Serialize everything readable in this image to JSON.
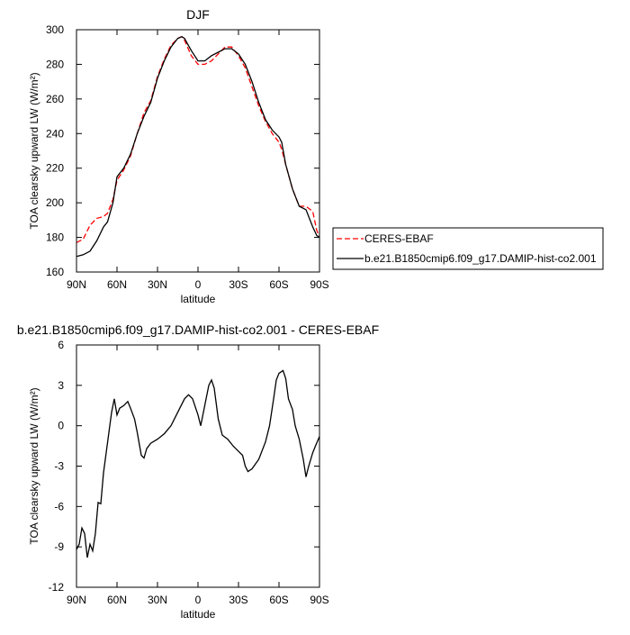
{
  "chart_data": [
    {
      "type": "line",
      "title": "DJF",
      "xlabel": "latitude",
      "ylabel": "TOA clearsky upward LW (W/m²)",
      "x": [
        90,
        85,
        80,
        75,
        70,
        67,
        63,
        60,
        55,
        50,
        45,
        40,
        35,
        30,
        25,
        20,
        15,
        12,
        10,
        5,
        0,
        -5,
        -10,
        -15,
        -20,
        -25,
        -30,
        -35,
        -40,
        -45,
        -50,
        -55,
        -60,
        -62,
        -65,
        -70,
        -75,
        -80,
        -85,
        -88,
        -90
      ],
      "series": [
        {
          "name": "CERES-EBAF",
          "color": "#ff0000",
          "dashed": true,
          "values": [
            177,
            179,
            187,
            191,
            192,
            194,
            202,
            213,
            219,
            227,
            240,
            252,
            259,
            273,
            283,
            291,
            295,
            296,
            294,
            285,
            280,
            280,
            282,
            286,
            290,
            290,
            285,
            278,
            267,
            256,
            247,
            240,
            235,
            231,
            222,
            208,
            198,
            198,
            195,
            184,
            180
          ]
        },
        {
          "name": "b.e21.B1850cmip6.f09_g17.DAMIP-hist-co2.001",
          "color": "#000000",
          "dashed": false,
          "values": [
            169,
            170,
            172,
            178,
            186,
            189,
            200,
            215,
            220,
            228,
            240,
            250,
            258,
            272,
            282,
            290,
            295,
            296,
            295,
            288,
            282,
            282,
            285,
            287,
            289,
            289,
            286,
            280,
            270,
            258,
            248,
            242,
            238,
            235,
            222,
            208,
            198,
            196,
            186,
            181,
            180
          ]
        }
      ],
      "xlim": [
        90,
        -90
      ],
      "xticks": [
        {
          "value": 90,
          "label": "90N"
        },
        {
          "value": 60,
          "label": "60N"
        },
        {
          "value": 30,
          "label": "30N"
        },
        0,
        {
          "value": -30,
          "label": "30S"
        },
        {
          "value": -60,
          "label": "60S"
        },
        {
          "value": -90,
          "label": "90S"
        }
      ],
      "ylim": [
        160,
        300
      ],
      "yticks": [
        160,
        180,
        200,
        220,
        240,
        260,
        280,
        300
      ],
      "legend": "right"
    },
    {
      "type": "line",
      "title": "b.e21.B1850cmip6.f09_g17.DAMIP-hist-co2.001 - CERES-EBAF",
      "xlabel": "latitude",
      "ylabel": "TOA clearsky upward LW (W/m²)",
      "x": [
        90,
        88,
        86,
        84,
        82,
        80,
        78,
        76,
        74,
        72,
        70,
        68,
        66,
        64,
        62,
        60,
        58,
        55,
        52,
        50,
        47,
        45,
        42,
        40,
        38,
        35,
        30,
        25,
        20,
        15,
        10,
        7,
        4,
        0,
        -2,
        -5,
        -8,
        -10,
        -12,
        -15,
        -18,
        -22,
        -26,
        -30,
        -33,
        -35,
        -37,
        -40,
        -45,
        -50,
        -53,
        -56,
        -58,
        -60,
        -63,
        -65,
        -67,
        -70,
        -72,
        -75,
        -78,
        -80,
        -82,
        -85,
        -87,
        -90
      ],
      "series": [
        {
          "name": null,
          "color": "#000000",
          "dashed": false,
          "values": [
            -9.2,
            -8.8,
            -7.6,
            -8.0,
            -9.8,
            -8.8,
            -9.3,
            -8.0,
            -5.7,
            -5.8,
            -3.5,
            -2.0,
            -0.5,
            1.0,
            2.0,
            0.8,
            1.3,
            1.5,
            1.8,
            1.3,
            0.5,
            -0.5,
            -2.2,
            -2.4,
            -1.7,
            -1.3,
            -1.0,
            -0.6,
            0.0,
            1.0,
            2.0,
            2.3,
            2.0,
            0.8,
            0.0,
            1.5,
            3.0,
            3.4,
            2.8,
            0.5,
            -0.7,
            -1.0,
            -1.5,
            -1.9,
            -2.2,
            -3.0,
            -3.4,
            -3.2,
            -2.5,
            -1.2,
            0.0,
            2.0,
            3.4,
            3.9,
            4.1,
            3.5,
            2.0,
            1.2,
            0.0,
            -1.0,
            -2.5,
            -3.8,
            -3.0,
            -2.0,
            -1.5,
            -0.8
          ]
        }
      ],
      "xlim": [
        90,
        -90
      ],
      "xticks": [
        {
          "value": 90,
          "label": "90N"
        },
        {
          "value": 60,
          "label": "60N"
        },
        {
          "value": 30,
          "label": "30N"
        },
        0,
        {
          "value": -30,
          "label": "30S"
        },
        {
          "value": -60,
          "label": "60S"
        },
        {
          "value": -90,
          "label": "90S"
        }
      ],
      "ylim": [
        -12,
        6
      ],
      "yticks": [
        -12,
        -9,
        -6,
        -3,
        0,
        3,
        6
      ]
    }
  ]
}
